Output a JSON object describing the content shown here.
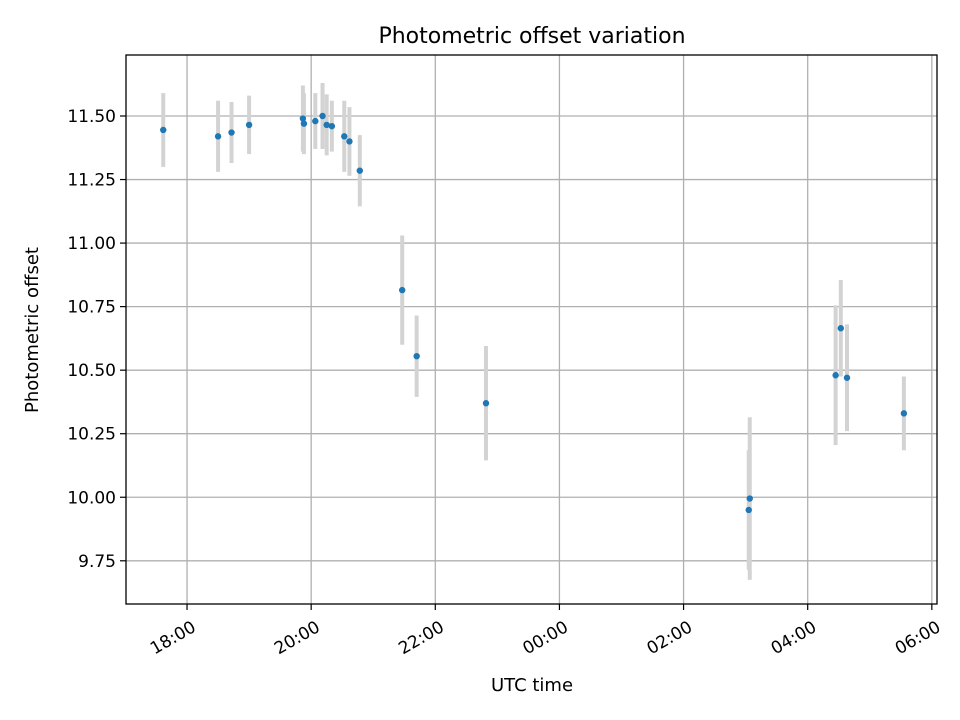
{
  "chart_data": {
    "type": "scatter",
    "title": "Photometric offset variation",
    "xlabel": "UTC time",
    "ylabel": "Photometric offset",
    "x_unit": "UTC time (HH:MM), night spanning two days",
    "xlim": [
      "17:01",
      "06:05"
    ],
    "ylim": [
      9.58,
      11.74
    ],
    "x_ticks": [
      "18:00",
      "20:00",
      "22:00",
      "00:00",
      "02:00",
      "04:00",
      "06:00"
    ],
    "y_ticks": [
      "9.75",
      "10.00",
      "10.25",
      "10.50",
      "10.75",
      "11.00",
      "11.25",
      "11.50"
    ],
    "grid": true,
    "point_color": "#1f77b4",
    "errorbar_color": "#d3d3d3",
    "points": [
      {
        "x": "17:37",
        "y": 11.445,
        "err": 0.145
      },
      {
        "x": "18:30",
        "y": 11.42,
        "err": 0.14
      },
      {
        "x": "18:43",
        "y": 11.435,
        "err": 0.12
      },
      {
        "x": "19:00",
        "y": 11.465,
        "err": 0.115
      },
      {
        "x": "19:52",
        "y": 11.49,
        "err": 0.13
      },
      {
        "x": "19:53",
        "y": 11.47,
        "err": 0.12
      },
      {
        "x": "20:04",
        "y": 11.48,
        "err": 0.11
      },
      {
        "x": "20:11",
        "y": 11.5,
        "err": 0.13
      },
      {
        "x": "20:15",
        "y": 11.465,
        "err": 0.12
      },
      {
        "x": "20:20",
        "y": 11.46,
        "err": 0.1
      },
      {
        "x": "20:32",
        "y": 11.42,
        "err": 0.14
      },
      {
        "x": "20:37",
        "y": 11.4,
        "err": 0.135
      },
      {
        "x": "20:47",
        "y": 11.285,
        "err": 0.14
      },
      {
        "x": "21:28",
        "y": 10.815,
        "err": 0.215
      },
      {
        "x": "21:42",
        "y": 10.555,
        "err": 0.16
      },
      {
        "x": "22:49",
        "y": 10.37,
        "err": 0.225
      },
      {
        "x": "03:03",
        "y": 9.95,
        "err": 0.235
      },
      {
        "x": "03:04",
        "y": 9.995,
        "err": 0.32
      },
      {
        "x": "04:27",
        "y": 10.48,
        "err": 0.275
      },
      {
        "x": "04:32",
        "y": 10.665,
        "err": 0.19
      },
      {
        "x": "04:38",
        "y": 10.47,
        "err": 0.21
      },
      {
        "x": "05:33",
        "y": 10.33,
        "err": 0.145
      }
    ]
  }
}
